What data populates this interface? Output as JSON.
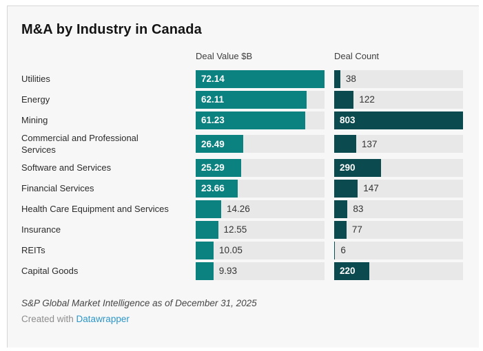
{
  "page": {
    "background": "#ffffff",
    "panel_background": "#f7f7f7",
    "panel_border_color": "#d6d6d6"
  },
  "header": {
    "title": "M&A by Industry in Canada"
  },
  "chart_data": {
    "type": "bar",
    "orientation": "horizontal",
    "title": "M&A by Industry in Canada",
    "grid": false,
    "legend_position": "column-headers",
    "track_color": "#e8e8e8",
    "categories": [
      "Utilities",
      "Energy",
      "Mining",
      "Commercial and Professional Services",
      "Software and Services",
      "Financial Services",
      "Health Care Equipment and Services",
      "Insurance",
      "REITs",
      "Capital Goods"
    ],
    "series": [
      {
        "name": "Deal Value $B",
        "values": [
          72.14,
          62.11,
          61.23,
          26.49,
          25.29,
          23.66,
          14.26,
          12.55,
          10.05,
          9.93
        ],
        "labels": [
          "72.14",
          "62.11",
          "61.23",
          "26.49",
          "25.29",
          "23.66",
          "14.26",
          "12.55",
          "10.05",
          "9.93"
        ],
        "axis_max": 72.14,
        "bar_color": "#0c8280"
      },
      {
        "name": "Deal Count",
        "values": [
          38,
          122,
          803,
          137,
          290,
          147,
          83,
          77,
          6,
          220
        ],
        "labels": [
          "38",
          "122",
          "803",
          "137",
          "290",
          "147",
          "83",
          "77",
          "6",
          "220"
        ],
        "axis_max": 803,
        "bar_color": "#0b4a4e"
      }
    ]
  },
  "footer": {
    "source": "S&P Global Market Intelligence as of December 31, 2025",
    "byline_prefix": "Created with ",
    "byline_link": "Datawrapper",
    "link_color": "#2d96c8"
  }
}
